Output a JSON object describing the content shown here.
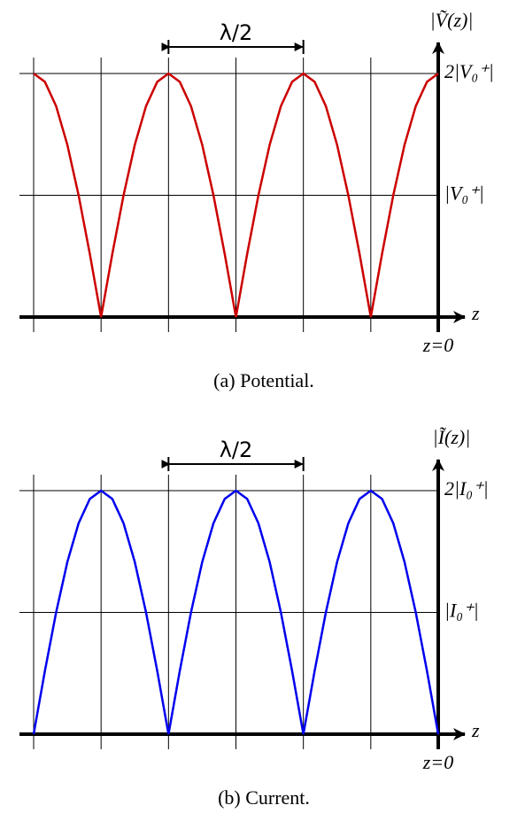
{
  "chart_data": [
    {
      "type": "line",
      "caption": "(a) Potential.",
      "y_label": "|Ṽ(z)|",
      "x_label": "z",
      "color": "#cc0000",
      "x": [
        -36,
        -35,
        -34,
        -33,
        -32,
        -31,
        -30,
        -29,
        -28,
        -27,
        -26,
        -25,
        -24,
        -23,
        -22,
        -21,
        -20,
        -19,
        -18,
        -17,
        -16,
        -15,
        -14,
        -13,
        -12,
        -11,
        -10,
        -9,
        -8,
        -7,
        -6,
        -5,
        -4,
        -3,
        -2,
        -1,
        0
      ],
      "values": [
        2,
        1.932,
        1.732,
        1.414,
        1,
        0.518,
        0,
        0.518,
        1,
        1.414,
        1.732,
        1.932,
        2,
        1.932,
        1.732,
        1.414,
        1,
        0.518,
        0,
        0.518,
        1,
        1.414,
        1.732,
        1.932,
        2,
        1.932,
        1.732,
        1.414,
        1,
        0.518,
        0,
        0.518,
        1,
        1.414,
        1.732,
        1.932,
        2
      ],
      "xlim": [
        -36,
        0
      ],
      "ylim": [
        0,
        2
      ],
      "xticks": [
        {
          "value": -36,
          "label": null
        },
        {
          "value": -30,
          "label": null
        },
        {
          "value": -24,
          "label": null
        },
        {
          "value": -18,
          "label": null
        },
        {
          "value": -12,
          "label": null
        },
        {
          "value": -6,
          "label": null
        },
        {
          "value": 0,
          "label": "z=0"
        }
      ],
      "yticks": [
        {
          "value": 0,
          "label": null
        },
        {
          "value": 1,
          "label": "|V₀⁺|"
        },
        {
          "value": 2,
          "label": "2|V₀⁺|"
        }
      ],
      "annotation": {
        "text": "λ/2",
        "x": [
          -24,
          -12
        ]
      },
      "grid": true
    },
    {
      "type": "line",
      "caption": "(b) Current.",
      "y_label": "|Ĩ(z)|",
      "x_label": "z",
      "color": "#0000ee",
      "x": [
        -36,
        -35,
        -34,
        -33,
        -32,
        -31,
        -30,
        -29,
        -28,
        -27,
        -26,
        -25,
        -24,
        -23,
        -22,
        -21,
        -20,
        -19,
        -18,
        -17,
        -16,
        -15,
        -14,
        -13,
        -12,
        -11,
        -10,
        -9,
        -8,
        -7,
        -6,
        -5,
        -4,
        -3,
        -2,
        -1,
        0
      ],
      "values": [
        0,
        0.518,
        1,
        1.414,
        1.732,
        1.932,
        2,
        1.932,
        1.732,
        1.414,
        1,
        0.518,
        0,
        0.518,
        1,
        1.414,
        1.732,
        1.932,
        2,
        1.932,
        1.732,
        1.414,
        1,
        0.518,
        0,
        0.518,
        1,
        1.414,
        1.732,
        1.932,
        2,
        1.932,
        1.732,
        1.414,
        1,
        0.518,
        0
      ],
      "xlim": [
        -36,
        0
      ],
      "ylim": [
        0,
        2
      ],
      "xticks": [
        {
          "value": -36,
          "label": null
        },
        {
          "value": -30,
          "label": null
        },
        {
          "value": -24,
          "label": null
        },
        {
          "value": -18,
          "label": null
        },
        {
          "value": -12,
          "label": null
        },
        {
          "value": -6,
          "label": null
        },
        {
          "value": 0,
          "label": "z=0"
        }
      ],
      "yticks": [
        {
          "value": 0,
          "label": null
        },
        {
          "value": 1,
          "label": "|I₀⁺|"
        },
        {
          "value": 2,
          "label": "2|I₀⁺|"
        }
      ],
      "annotation": {
        "text": "λ/2",
        "x": [
          -24,
          -12
        ]
      },
      "grid": true
    }
  ]
}
